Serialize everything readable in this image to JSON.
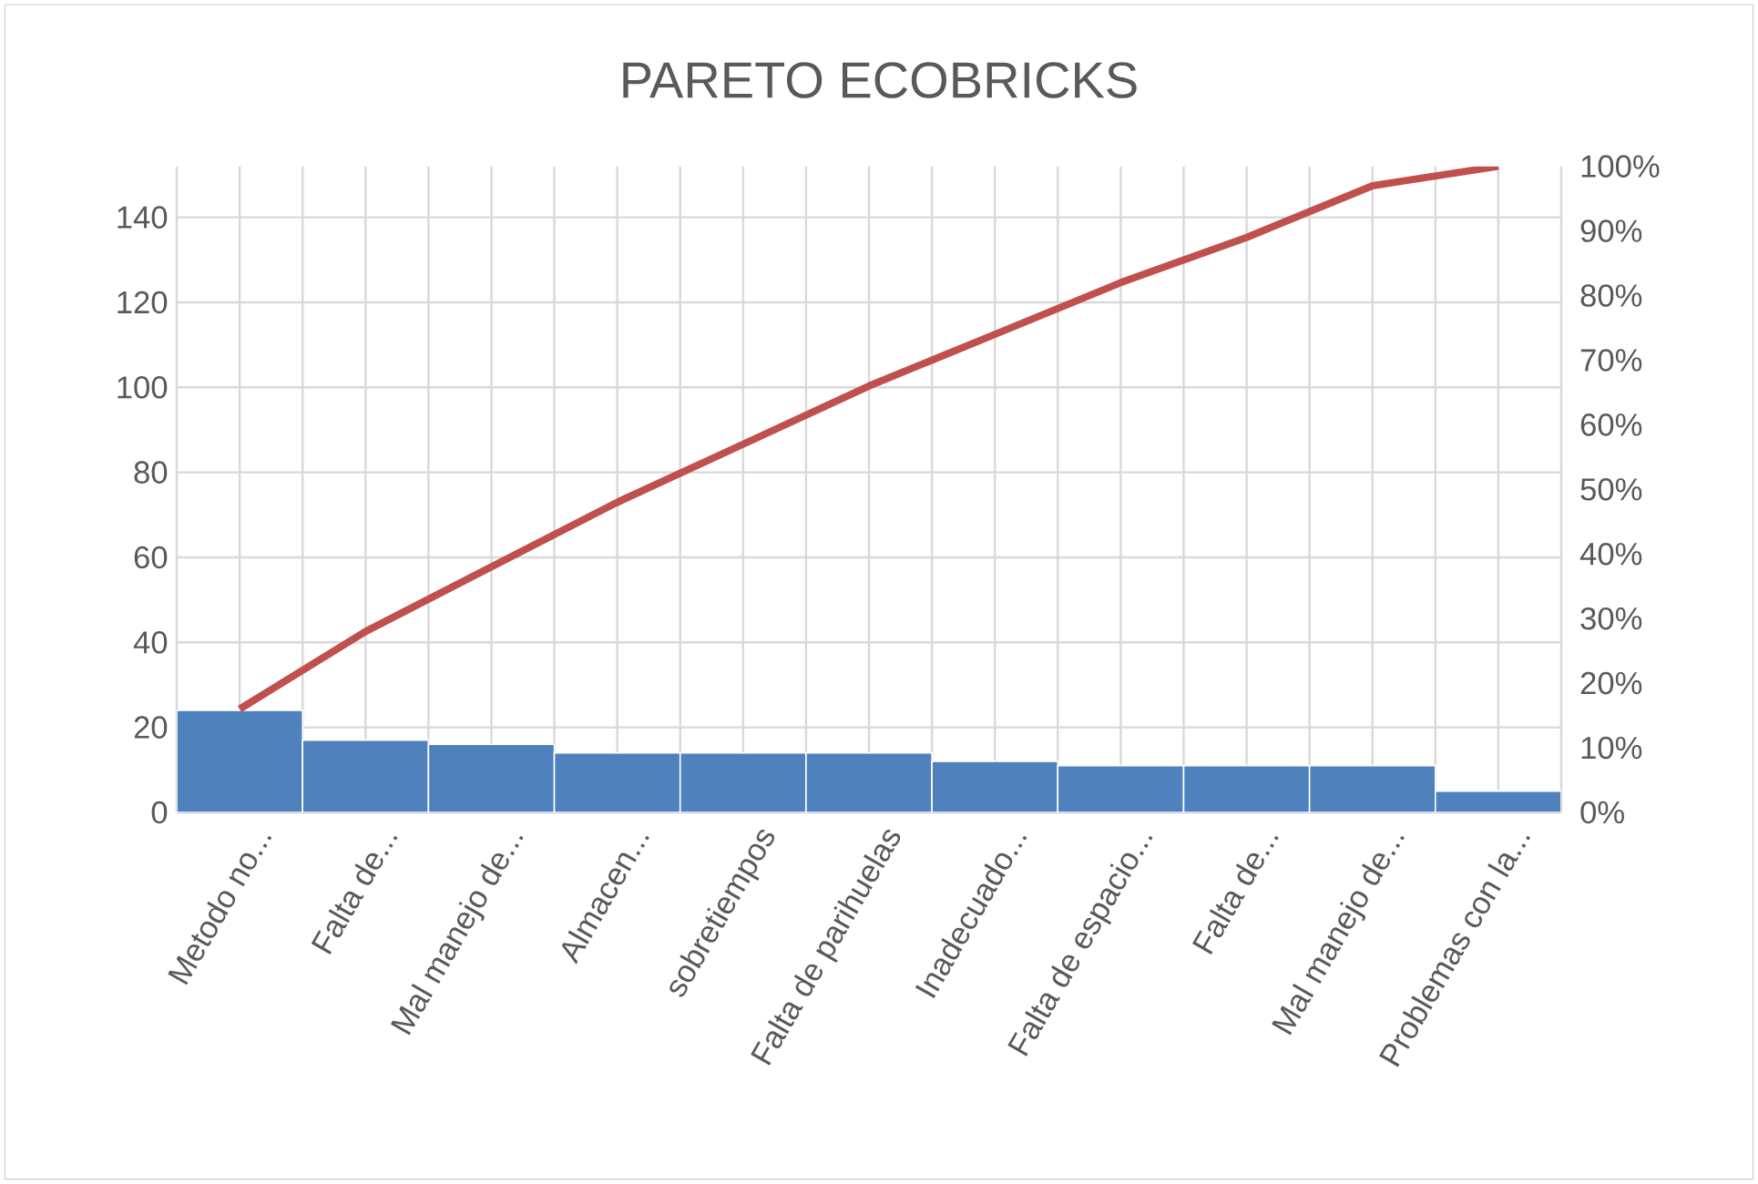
{
  "chart_data": {
    "type": "bar",
    "title": "PARETO ECOBRICKS",
    "categories": [
      "Metodo no...",
      "Falta de...",
      "Mal manejo de...",
      "Almacen...",
      "sobretiempos",
      "Falta de parihuelas",
      "Inadecuado...",
      "Falta de espacio...",
      "Falta de...",
      "Mal manejo de...",
      "Problemas con la..."
    ],
    "series": [
      {
        "color": "#4f81bd",
        "values": [
          24,
          17,
          16,
          14,
          14,
          14,
          12,
          11,
          11,
          11,
          5
        ]
      },
      {
        "type": "line",
        "axis": "y2",
        "color": "#c0504d",
        "values": [
          16,
          28,
          38,
          48,
          57,
          66,
          74,
          82,
          89,
          97,
          100
        ]
      }
    ],
    "ylim": [
      0,
      152
    ],
    "yticks": [
      0,
      20,
      40,
      60,
      80,
      100,
      120,
      140
    ],
    "y2lim": [
      0,
      100
    ],
    "y2ticks": [
      {
        "value": 0,
        "label": "0%"
      },
      {
        "value": 10,
        "label": "10%"
      },
      {
        "value": 20,
        "label": "20%"
      },
      {
        "value": 30,
        "label": "30%"
      },
      {
        "value": 40,
        "label": "40%"
      },
      {
        "value": 50,
        "label": "50%"
      },
      {
        "value": 60,
        "label": "60%"
      },
      {
        "value": 70,
        "label": "70%"
      },
      {
        "value": 80,
        "label": "80%"
      },
      {
        "value": 90,
        "label": "90%"
      },
      {
        "value": 100,
        "label": "100%"
      }
    ],
    "grid": true,
    "marker": "none",
    "line_style": "solid"
  }
}
